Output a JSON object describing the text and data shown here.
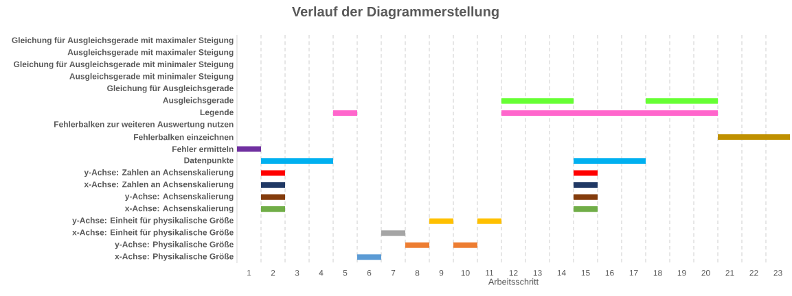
{
  "chart_data": {
    "type": "bar",
    "orientation": "horizontal",
    "title": "Verlauf der Diagrammerstellung",
    "xlabel": "Arbeitsschritt",
    "categories": [
      "Gleichung für Ausgleichsgerade mit maximaler Steigung",
      "Ausgleichsgerade mit maximaler Steigung",
      "Gleichung für Ausgleichsgerade mit minimaler Steigung",
      "Ausgleichsgerade mit minimaler Steigung",
      "Gleichung für Ausgleichsgerade",
      "Ausgleichsgerade",
      "Legende",
      "Fehlerbalken zur weiteren Auswertung nutzen",
      "Fehlerbalken einzeichnen",
      "Fehler ermitteln",
      "Datenpunkte",
      "y-Achse: Zahlen an Achsenskalierung",
      "x-Achse: Zahlen an Achsenskalierung",
      "y-Achse: Achsenskalierung",
      "x-Achse: Achsenskalierung",
      "y-Achse: Einheit für physikalische Größe",
      "x-Achse: Einheit für physikalische Größe",
      "y-Achse: Physikalische Größe",
      "x-Achse: Physikalische Größe"
    ],
    "series": [
      {
        "base": [
          null,
          null,
          null,
          null,
          null,
          11,
          4,
          null,
          20,
          0,
          1,
          1,
          1,
          1,
          1,
          8,
          6,
          7,
          5
        ],
        "values": [
          null,
          null,
          null,
          null,
          null,
          3,
          1,
          null,
          3,
          1,
          3,
          1,
          1,
          1,
          1,
          1,
          1,
          1,
          1
        ],
        "colors": [
          null,
          null,
          null,
          null,
          null,
          "#66ff33",
          "#ff66cc",
          null,
          "#bf9000",
          "#7030a0",
          "#00b0f0",
          "#ff0000",
          "#203864",
          "#843c0c",
          "#70ad47",
          "#ffc000",
          "#a5a5a5",
          "#ed7d31",
          "#5b9bd5"
        ]
      },
      {
        "base": [
          null,
          null,
          null,
          null,
          null,
          17,
          11,
          null,
          null,
          null,
          14,
          14,
          14,
          14,
          14,
          10,
          null,
          9,
          null
        ],
        "values": [
          null,
          null,
          null,
          null,
          null,
          3,
          9,
          null,
          null,
          null,
          3,
          1,
          1,
          1,
          1,
          1,
          null,
          1,
          null
        ],
        "colors": [
          null,
          null,
          null,
          null,
          null,
          "#66ff33",
          "#ff66cc",
          null,
          null,
          null,
          "#00b0f0",
          "#ff0000",
          "#203864",
          "#843c0c",
          "#70ad47",
          "#ffc000",
          null,
          "#ed7d31",
          null
        ]
      }
    ],
    "xlim": [
      0,
      23
    ],
    "xticks": [
      {
        "value": 0.5,
        "label": "1"
      },
      {
        "value": 1.5,
        "label": "2"
      },
      {
        "value": 2.5,
        "label": "3"
      },
      {
        "value": 3.5,
        "label": "4"
      },
      {
        "value": 4.5,
        "label": "5"
      },
      {
        "value": 5.5,
        "label": "6"
      },
      {
        "value": 6.5,
        "label": "7"
      },
      {
        "value": 7.5,
        "label": "8"
      },
      {
        "value": 8.5,
        "label": "9"
      },
      {
        "value": 9.5,
        "label": "10"
      },
      {
        "value": 10.5,
        "label": "11"
      },
      {
        "value": 11.5,
        "label": "12"
      },
      {
        "value": 12.5,
        "label": "13"
      },
      {
        "value": 13.5,
        "label": "14"
      },
      {
        "value": 14.5,
        "label": "15"
      },
      {
        "value": 15.5,
        "label": "16"
      },
      {
        "value": 16.5,
        "label": "17"
      },
      {
        "value": 17.5,
        "label": "18"
      },
      {
        "value": 18.5,
        "label": "19"
      },
      {
        "value": 19.5,
        "label": "20"
      },
      {
        "value": 20.5,
        "label": "21"
      },
      {
        "value": 21.5,
        "label": "22"
      },
      {
        "value": 22.5,
        "label": "23"
      },
      {
        "value": 1,
        "label": null
      },
      {
        "value": 2,
        "label": null
      },
      {
        "value": 3,
        "label": null
      },
      {
        "value": 4,
        "label": null
      },
      {
        "value": 5,
        "label": null
      },
      {
        "value": 6,
        "label": null
      },
      {
        "value": 7,
        "label": null
      },
      {
        "value": 8,
        "label": null
      },
      {
        "value": 9,
        "label": null
      },
      {
        "value": 10,
        "label": null
      },
      {
        "value": 11,
        "label": null
      },
      {
        "value": 12,
        "label": null
      },
      {
        "value": 13,
        "label": null
      },
      {
        "value": 14,
        "label": null
      },
      {
        "value": 15,
        "label": null
      },
      {
        "value": 16,
        "label": null
      },
      {
        "value": 17,
        "label": null
      },
      {
        "value": 18,
        "label": null
      },
      {
        "value": 19,
        "label": null
      },
      {
        "value": 20,
        "label": null
      },
      {
        "value": 21,
        "label": null
      },
      {
        "value": 22,
        "label": null
      }
    ],
    "grid": true
  }
}
